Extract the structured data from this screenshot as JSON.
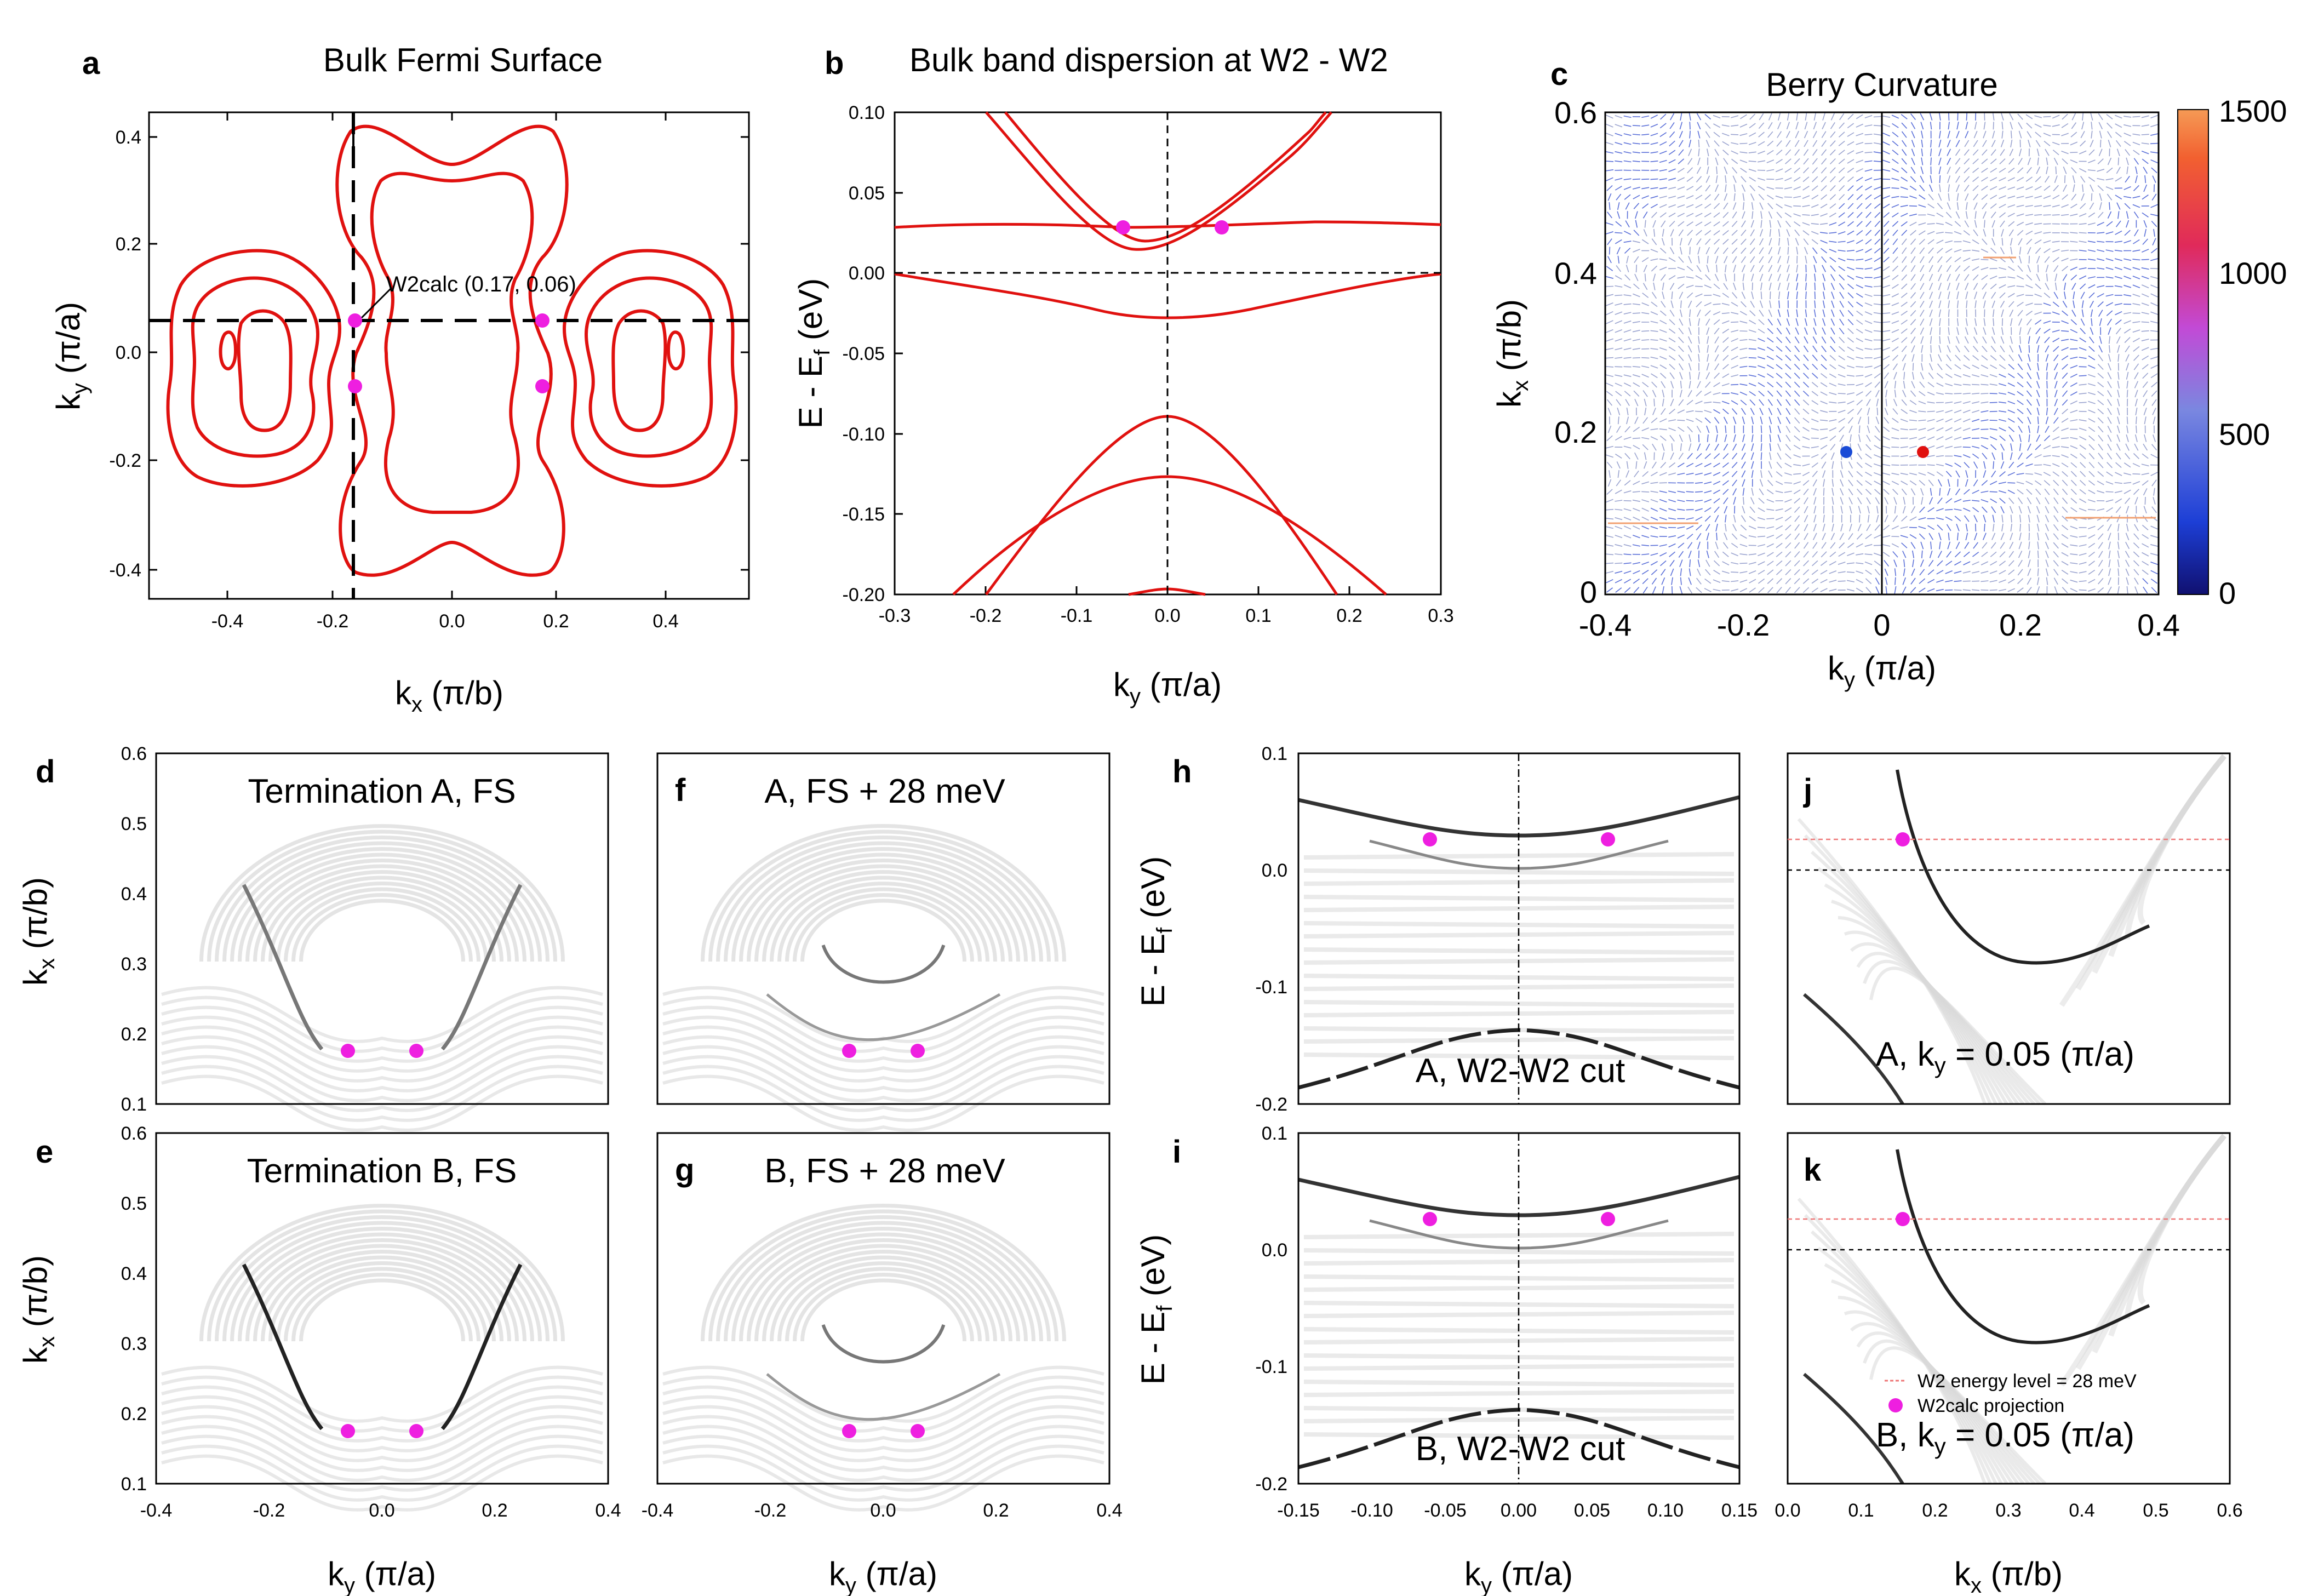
{
  "figure": {
    "panel_labels": [
      "a",
      "b",
      "c",
      "d",
      "e",
      "f",
      "g",
      "h",
      "i",
      "j",
      "k"
    ],
    "panel_a": {
      "title": "Bulk Fermi Surface",
      "xlabel": "k",
      "xlabel_sub": "x",
      "xlabel_unit": "(π/b)",
      "ylabel": "k",
      "ylabel_sub": "y",
      "ylabel_unit": "(π/a)",
      "xticks": [
        "-0.4",
        "-0.2",
        "0.0",
        "0.2",
        "0.4"
      ],
      "yticks": [
        "0.4",
        "0.2",
        "0.0",
        "-0.2",
        "-0.4"
      ],
      "annotation": "W2calc (0.17, 0.06)"
    },
    "panel_b": {
      "title": "Bulk band dispersion at W2 - W2",
      "xlabel": "k",
      "xlabel_sub": "y",
      "xlabel_unit": "(π/a)",
      "ylabel": "E - E",
      "ylabel_sub": "f",
      "ylabel_unit": "(eV)",
      "xticks": [
        "-0.3",
        "-0.2",
        "-0.1",
        "0.0",
        "0.1",
        "0.2",
        "0.3"
      ],
      "yticks": [
        "0.10",
        "0.05",
        "0.00",
        "-0.05",
        "-0.10",
        "-0.15",
        "-0.20"
      ]
    },
    "panel_c": {
      "title": "Berry Curvature",
      "xlabel": "k",
      "xlabel_sub": "y",
      "xlabel_unit": "(π/a)",
      "ylabel": "k",
      "ylabel_sub": "x",
      "ylabel_unit": "(π/b)",
      "xticks": [
        "-0.4",
        "-0.2",
        "0",
        "0.2",
        "0.4"
      ],
      "yticks": [
        "0.6",
        "0.4",
        "0.2",
        "0"
      ],
      "colorbar_ticks": [
        "1500",
        "1000",
        "500",
        "0"
      ]
    },
    "panel_d": {
      "title": "Termination A, FS"
    },
    "panel_e": {
      "title": "Termination B, FS"
    },
    "panel_f": {
      "title": "A, FS + 28 meV"
    },
    "panel_g": {
      "title": "B, FS + 28 meV"
    },
    "panel_h": {
      "title": "A, W2-W2 cut"
    },
    "panel_i": {
      "title": "B, W2-W2 cut"
    },
    "panel_j": {
      "title": "A, k",
      "title_sub": "y",
      "title_rest": " = 0.05 (π/a)"
    },
    "panel_k": {
      "title": "B, k",
      "title_sub": "y",
      "title_rest": " = 0.05 (π/a)"
    },
    "surface_axes": {
      "kx_ticks": [
        "0.6",
        "0.5",
        "0.4",
        "0.3",
        "0.2",
        "0.1"
      ],
      "ky_ticks": [
        "-0.4",
        "-0.2",
        "0.0",
        "0.2",
        "0.4"
      ],
      "xlabel": "k",
      "xlabel_sub": "y",
      "xlabel_unit": "(π/a)",
      "ylabel": "k",
      "ylabel_sub": "x",
      "ylabel_unit": "(π/b)"
    },
    "cut_axes": {
      "eticks": [
        "0.1",
        "0.0",
        "-0.1",
        "-0.2"
      ],
      "ky_ticks": [
        "-0.15",
        "-0.10",
        "-0.05",
        "0.00",
        "0.05",
        "0.10",
        "0.15"
      ],
      "kx_ticks": [
        "0.0",
        "0.1",
        "0.2",
        "0.3",
        "0.4",
        "0.5",
        "0.6"
      ],
      "ylabel": "E - E",
      "ylabel_sub": "f",
      "ylabel_unit": "(eV)",
      "h_xlabel": "k",
      "h_xlabel_sub": "y",
      "h_xlabel_unit": "(π/a)",
      "j_xlabel": "k",
      "j_xlabel_sub": "x",
      "j_xlabel_unit": "(π/b)"
    },
    "legend": {
      "line_label": "W2 energy level = 28 meV",
      "dot_label": "W2calc projection"
    },
    "colors": {
      "bands": "#e0110f",
      "weyl": "#ee1fe0",
      "blue_point": "#1a4bd6",
      "red_point": "#e0110f"
    }
  }
}
